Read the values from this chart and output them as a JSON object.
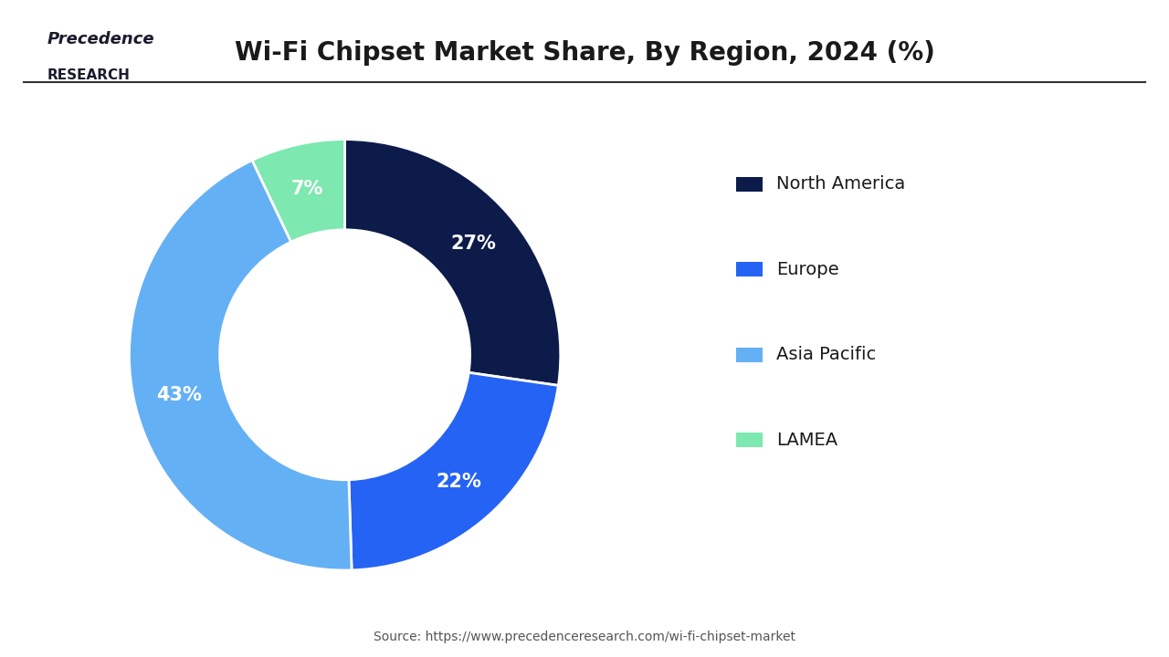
{
  "title": "Wi-Fi Chipset Market Share, By Region, 2024 (%)",
  "title_fontsize": 20,
  "categories": [
    "North America",
    "Europe",
    "Asia Pacific",
    "LAMEA"
  ],
  "values": [
    27,
    22,
    43,
    7
  ],
  "colors": [
    "#0d1b4b",
    "#2563f5",
    "#64b0f5",
    "#7de8b0"
  ],
  "pct_labels": [
    "27%",
    "22%",
    "43%",
    "7%"
  ],
  "legend_labels": [
    "North America",
    "Europe",
    "Asia Pacific",
    "LAMEA"
  ],
  "source_text": "Source: https://www.precedenceresearch.com/wi-fi-chipset-market",
  "background_color": "#ffffff",
  "wedge_edge_color": "#ffffff",
  "logo_text_top": "Precedence",
  "logo_text_bottom": "RESEARCH",
  "start_angle": 90,
  "donut_width": 0.42
}
